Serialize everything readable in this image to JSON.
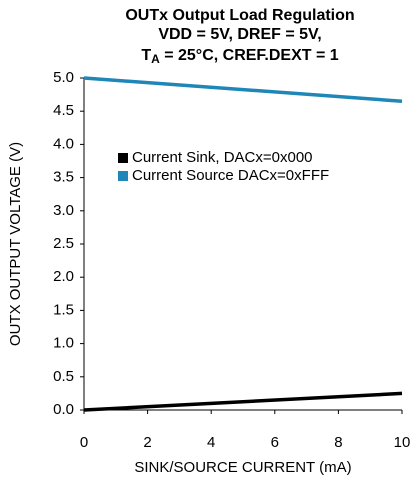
{
  "chart_data": {
    "type": "line",
    "title": [
      "OUTx Output Load Regulation",
      "VDD = 5V, DREF = 5V,"
    ],
    "title_line3": {
      "main": "T",
      "sub": "A",
      "rest": " = 25°C, CREF.DEXT = 1"
    },
    "xlabel": "SINK/SOURCE CURRENT (mA)",
    "ylabel": "OUTX OUTPUT VOLTAGE (V)",
    "x": [
      0,
      10
    ],
    "series": [
      {
        "name": "Current Sink, DACx=0x000",
        "color": "#000000",
        "values": [
          0.0,
          0.25
        ]
      },
      {
        "name": "Current Source DACx=0xFFF",
        "color": "#1f87b8",
        "values": [
          5.0,
          4.65
        ]
      }
    ],
    "xlim": [
      0,
      10
    ],
    "xticks": [
      0,
      2,
      4,
      6,
      8,
      10
    ],
    "ylim": [
      0,
      5
    ],
    "yticks": [
      {
        "value": 0,
        "label": "0.0"
      },
      {
        "value": 0.5,
        "label": "0.5"
      },
      {
        "value": 1,
        "label": "1.0"
      },
      {
        "value": 1.5,
        "label": "1.5"
      },
      {
        "value": 2,
        "label": "2.0"
      },
      {
        "value": 2.5,
        "label": "2.5"
      },
      {
        "value": 3,
        "label": "3.0"
      },
      {
        "value": 3.5,
        "label": "3.5"
      },
      {
        "value": 4,
        "label": "4.0"
      },
      {
        "value": 4.5,
        "label": "4.5"
      },
      {
        "value": 5,
        "label": "5.0"
      }
    ],
    "grid": false,
    "legend": "upper left"
  }
}
